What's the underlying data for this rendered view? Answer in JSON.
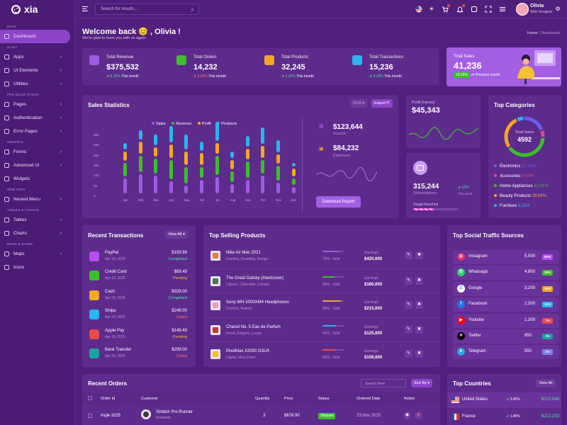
{
  "app": {
    "name": "xia"
  },
  "search": {
    "placeholder": "Search for results..."
  },
  "user": {
    "name": "Olivia",
    "role": "Web Designer"
  },
  "sidebar": {
    "sections": [
      "MAIN",
      "UI KIT",
      "PRE-BUILD PAGES",
      "GENERAL",
      "WEB APPS",
      "TABLES & CHARTS",
      "MAPS & ICONS"
    ],
    "items": [
      {
        "label": "Dashboard"
      },
      {
        "label": "Apps"
      },
      {
        "label": "UI Elements"
      },
      {
        "label": "Utilities"
      },
      {
        "label": "Pages"
      },
      {
        "label": "Authentication"
      },
      {
        "label": "Error Pages"
      },
      {
        "label": "Forms"
      },
      {
        "label": "Advanced Ui"
      },
      {
        "label": "Widgets"
      },
      {
        "label": "Nested Menu"
      },
      {
        "label": "Tables"
      },
      {
        "label": "Charts"
      },
      {
        "label": "Maps"
      },
      {
        "label": "Icons"
      }
    ]
  },
  "header": {
    "welcome": "Welcome back 😊 , Olivia !",
    "subtitle": "We're glad to have you with us again.",
    "breadcrumb_home": "Home",
    "breadcrumb_sep": "/",
    "breadcrumb_current": "Dashboard"
  },
  "kpis": [
    {
      "label": "Total Revenue",
      "value": "$375,532",
      "change": "5.15%",
      "period": "This month",
      "dir": "up"
    },
    {
      "label": "Total Orders",
      "value": "14,232",
      "change": "2.68%",
      "period": "This month",
      "dir": "down"
    },
    {
      "label": "Total Products",
      "value": "32,245",
      "change": "1.25%",
      "period": "This month",
      "dir": "up"
    },
    {
      "label": "Total Transactions",
      "value": "15,236",
      "change": "4.33%",
      "period": "This month",
      "dir": "up"
    }
  ],
  "total_sales": {
    "label": "Total Sales",
    "value": "41,236",
    "badge": "14.25%",
    "note": "vs Previous month"
  },
  "sales_stats": {
    "title": "Sales Statistics",
    "year": "2025",
    "export": "Export",
    "legend": [
      "Sales",
      "Revenue",
      "Profit",
      "Products"
    ],
    "income_value": "$123,644",
    "income_label": "Income",
    "expense_value": "$84,232",
    "expense_label": "Expenses",
    "download": "Download Report"
  },
  "chart_data": {
    "type": "bar",
    "categories": [
      "Jan",
      "Feb",
      "Mar",
      "Apr",
      "May",
      "Jun",
      "Jul",
      "Aug",
      "Sep",
      "Oct",
      "Nov",
      "Dec"
    ],
    "ylim": [
      0,
      300
    ],
    "yticks": [
      "300",
      "250",
      "200",
      "150",
      "100",
      "50",
      "0"
    ],
    "colors": {
      "Sales": "#9d5ce0",
      "Revenue": "#3bbf2a",
      "Profit": "#f5a623",
      "Products": "#2ab4f0"
    }
  },
  "profit": {
    "label": "Profit Earned",
    "value": "$45,343"
  },
  "subscriptions": {
    "value": "315,244",
    "label": "Subscriptions",
    "change": "12%",
    "period": "This week",
    "target_label": "Target Reached",
    "target": 0.45
  },
  "top_categories": {
    "title": "Top Categories",
    "center_label": "Total Sales",
    "center_value": "4592",
    "items": [
      {
        "name": "Electronics",
        "pct": "21.23%",
        "color": "#6a5cf0"
      },
      {
        "name": "Accesories",
        "pct": "6.53%",
        "color": "#e84b8a"
      },
      {
        "name": "Home Appliances",
        "pct": "42.41%",
        "color": "#3bbf2a"
      },
      {
        "name": "Beauty Products",
        "pct": "29.84%",
        "color": "#f5a623"
      },
      {
        "name": "Furniture",
        "pct": "6.53%",
        "color": "#2ab4f0"
      }
    ]
  },
  "transactions": {
    "title": "Recent Transactions",
    "view_all": "View All",
    "rows": [
      {
        "name": "PayPal",
        "date": "Apr 18, 2025",
        "amount": "$159.99",
        "status": "Completed",
        "color": "#b84cf0"
      },
      {
        "name": "Credit Card",
        "date": "Apr 18, 2025",
        "amount": "$89.49",
        "status": "Pending",
        "color": "#3bbf2a"
      },
      {
        "name": "Cash",
        "date": "Apr 18, 2025",
        "amount": "$329.00",
        "status": "Completed",
        "color": "#f5a623"
      },
      {
        "name": "Stripe",
        "date": "Apr 18, 2025",
        "amount": "$249.00",
        "status": "Failed",
        "color": "#2ab4f0"
      },
      {
        "name": "Apple Pay",
        "date": "Apr 18, 2025",
        "amount": "$149.49",
        "status": "Pending",
        "color": "#e84b4b"
      },
      {
        "name": "Bank Transfer",
        "date": "Apr 18, 2025",
        "amount": "$299.00",
        "status": "Failed",
        "color": "#1aa39a"
      }
    ]
  },
  "products": {
    "title": "Top Selling Products",
    "rows": [
      {
        "name": "Nike Air Max 2021",
        "desc": "Comfort, Durability, Design",
        "sold": "75% - Sold",
        "pct": 0.75,
        "earn_label": "Earnings",
        "earnings": "$420,000",
        "color": "#9d5ce0"
      },
      {
        "name": "The Great Gatsby (Hardcover)",
        "desc": "Classic, Collectible, Literary",
        "sold": "58% - Sold",
        "pct": 0.58,
        "earn_label": "Earnings",
        "earnings": "$180,000",
        "color": "#3bbf2a"
      },
      {
        "name": "Sony WH-1000XM4 Headphones",
        "desc": "Comfort, Battery",
        "sold": "85% - Sold",
        "pct": 0.85,
        "earn_label": "Earnings",
        "earnings": "$215,000",
        "color": "#f5a623"
      },
      {
        "name": "Chanel No. 5 Eau de Parfum",
        "desc": "Floral, Elegant, Luxury",
        "sold": "64% - Sold",
        "pct": 0.64,
        "earn_label": "Earnings",
        "earnings": "$125,000",
        "color": "#2ab4f0"
      },
      {
        "name": "PixelMax X2000 DSLR",
        "desc": "Digital, Ultra Zoom",
        "sold": "60% - Sold",
        "pct": 0.6,
        "earn_label": "Earnings",
        "earnings": "$159,000",
        "color": "#e84b4b"
      }
    ]
  },
  "traffic": {
    "title": "Top Social Traffic Sources",
    "rows": [
      {
        "name": "Instagram",
        "value": "5,500",
        "pct": "50%",
        "color": "#e1306c",
        "pctcolor": "#b84cf0"
      },
      {
        "name": "Whatsapp",
        "value": "4,800",
        "pct": "28%",
        "color": "#25d366",
        "pctcolor": "#3bbf2a"
      },
      {
        "name": "Google",
        "value": "3,200",
        "pct": "15%",
        "color": "#ffffff",
        "pctcolor": "#f5a623"
      },
      {
        "name": "Facebook",
        "value": "2,500",
        "pct": "14%",
        "color": "#1877f2",
        "pctcolor": "#2ab4f0"
      },
      {
        "name": "Youtube",
        "value": "1,300",
        "pct": "7%",
        "color": "#ff0000",
        "pctcolor": "#e84b4b"
      },
      {
        "name": "Twitter",
        "value": "850",
        "pct": "3%",
        "color": "#000000",
        "pctcolor": "#1aa39a"
      },
      {
        "name": "Telegram",
        "value": "550",
        "pct": "2%",
        "color": "#2aa4e0",
        "pctcolor": "#7b7fe8"
      }
    ]
  },
  "orders": {
    "title": "Recent Orders",
    "search_placeholder": "Search Here",
    "sort": "Sort By",
    "columns": [
      "Order Id",
      "Customer",
      "Quantity",
      "Price",
      "Status",
      "Ordered Date",
      "Action"
    ],
    "row": {
      "id": "#spk-1025",
      "product": "StrideX Pro Runner",
      "category": "Footwear",
      "qty": "3",
      "price": "$678.90",
      "status": "Shipped",
      "date": "23,Nov 2025"
    }
  },
  "countries": {
    "title": "Top Countries",
    "view_all": "View All",
    "rows": [
      {
        "name": "United States",
        "change": "3.40%",
        "value": "$312,546",
        "dir": "up"
      },
      {
        "name": "France",
        "change": "1.85%",
        "value": "$212,233",
        "dir": "up"
      }
    ]
  }
}
